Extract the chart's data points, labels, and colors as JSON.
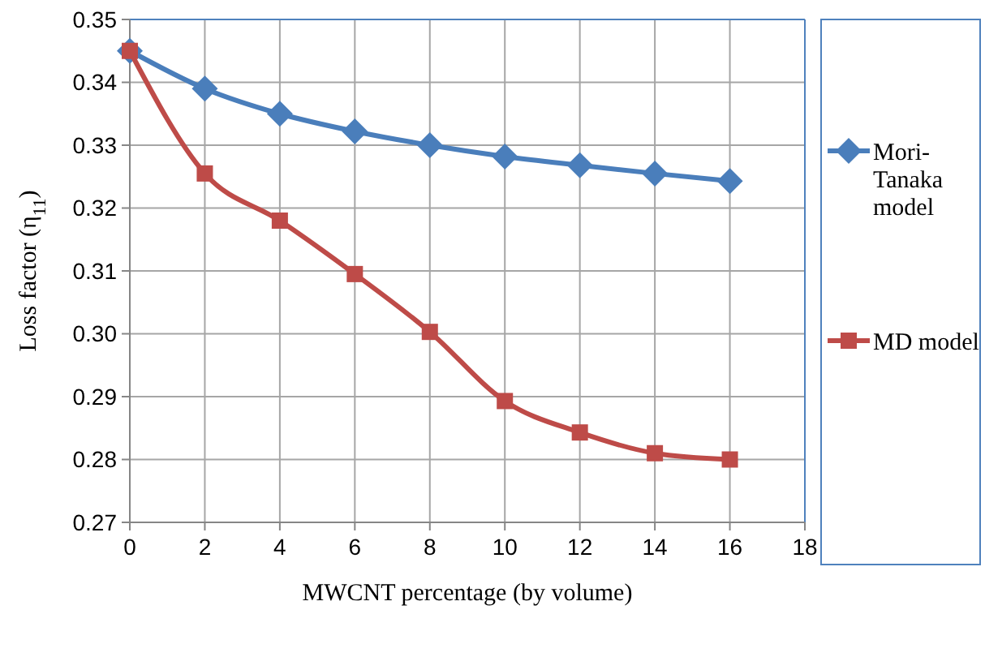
{
  "chart_data": {
    "type": "line",
    "xlabel": "MWCNT percentage (by volume)",
    "ylabel": "Loss factor  (η$_{11}$)",
    "x": [
      0,
      2,
      4,
      6,
      8,
      10,
      12,
      14,
      16
    ],
    "series": [
      {
        "name": "Mori-Tanaka model",
        "color": "#4a7ebb",
        "marker": "diamond",
        "values": [
          0.345,
          0.339,
          0.335,
          0.3322,
          0.33,
          0.3282,
          0.3268,
          0.3255,
          0.3243
        ]
      },
      {
        "name": "MD model",
        "color": "#be4b48",
        "marker": "square",
        "values": [
          0.345,
          0.3255,
          0.318,
          0.3095,
          0.3003,
          0.2893,
          0.2843,
          0.281,
          0.28
        ]
      }
    ],
    "xlim": [
      0,
      18
    ],
    "xticks": [
      0,
      2,
      4,
      6,
      8,
      10,
      12,
      14,
      16,
      18
    ],
    "ylim": [
      0.27,
      0.35
    ],
    "yticks": [
      {
        "value": 0.27,
        "label": "0.27"
      },
      {
        "value": 0.28,
        "label": "0.28"
      },
      {
        "value": 0.29,
        "label": "0.29"
      },
      {
        "value": 0.3,
        "label": "0.30"
      },
      {
        "value": 0.31,
        "label": "0.31"
      },
      {
        "value": 0.32,
        "label": "0.32"
      },
      {
        "value": 0.33,
        "label": "0.33"
      },
      {
        "value": 0.34,
        "label": "0.34"
      },
      {
        "value": 0.35,
        "label": "0.35"
      }
    ],
    "grid": true,
    "legend": "right"
  }
}
